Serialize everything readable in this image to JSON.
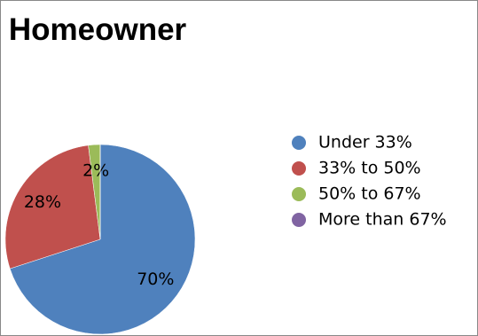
{
  "chart_data": {
    "type": "pie",
    "title": "Homeowner",
    "categories": [
      "Under 33%",
      "33% to 50%",
      "50% to 67%",
      "More than 67%"
    ],
    "values": [
      70,
      28,
      2,
      0
    ],
    "value_labels": [
      "70%",
      "28%",
      "2%",
      null
    ],
    "colors": [
      "#4f81bd",
      "#c0504d",
      "#9bbb59",
      "#8064a2"
    ]
  }
}
